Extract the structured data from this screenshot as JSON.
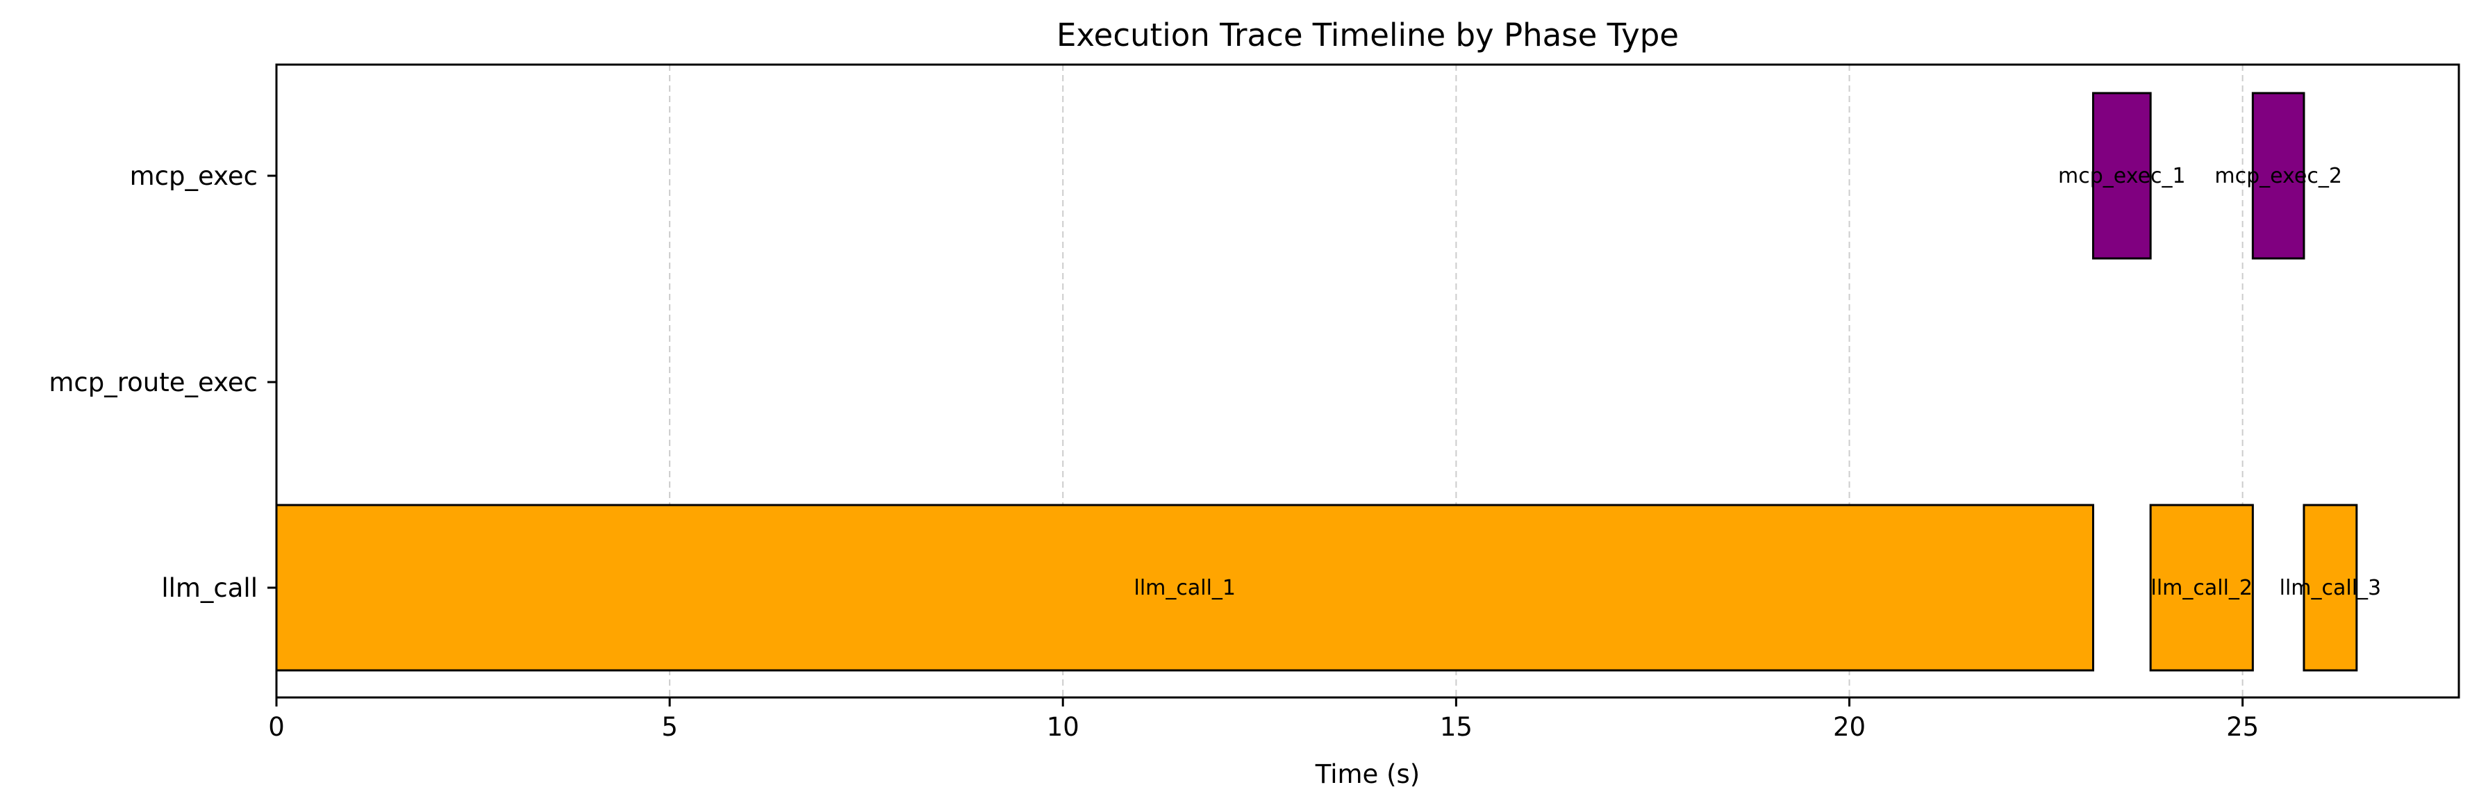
{
  "chart_data": {
    "type": "bar",
    "orientation": "horizontal",
    "title": "Execution Trace Timeline by Phase Type",
    "xlabel": "Time (s)",
    "ylabel": "",
    "xlim": [
      0,
      27.75
    ],
    "xticks": [
      0,
      5,
      10,
      15,
      20,
      25
    ],
    "categories": [
      "mcp_exec",
      "mcp_route_exec",
      "llm_call"
    ],
    "grid": {
      "x": true,
      "y": false,
      "style": "dashed"
    },
    "colors": {
      "mcp_exec": "#800080",
      "llm_call": "#ffa500",
      "edge": "#000000",
      "grid": "#cccccc"
    },
    "segments": [
      {
        "category": "llm_call",
        "label": "llm_call_1",
        "start": 0.0,
        "end": 23.1
      },
      {
        "category": "llm_call",
        "label": "llm_call_2",
        "start": 23.83,
        "end": 25.13
      },
      {
        "category": "llm_call",
        "label": "llm_call_3",
        "start": 25.78,
        "end": 26.45
      },
      {
        "category": "mcp_exec",
        "label": "mcp_exec_1",
        "start": 23.1,
        "end": 23.83
      },
      {
        "category": "mcp_exec",
        "label": "mcp_exec_2",
        "start": 25.13,
        "end": 25.78
      }
    ]
  }
}
